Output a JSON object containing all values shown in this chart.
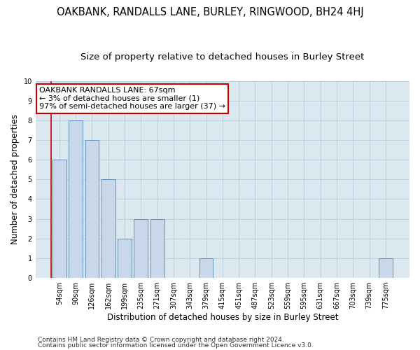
{
  "title": "OAKBANK, RANDALLS LANE, BURLEY, RINGWOOD, BH24 4HJ",
  "subtitle": "Size of property relative to detached houses in Burley Street",
  "xlabel": "Distribution of detached houses by size in Burley Street",
  "ylabel": "Number of detached properties",
  "categories": [
    "54sqm",
    "90sqm",
    "126sqm",
    "162sqm",
    "199sqm",
    "235sqm",
    "271sqm",
    "307sqm",
    "343sqm",
    "379sqm",
    "415sqm",
    "451sqm",
    "487sqm",
    "523sqm",
    "559sqm",
    "595sqm",
    "631sqm",
    "667sqm",
    "703sqm",
    "739sqm",
    "775sqm"
  ],
  "values": [
    6,
    8,
    7,
    5,
    2,
    3,
    3,
    0,
    0,
    1,
    0,
    0,
    0,
    0,
    0,
    0,
    0,
    0,
    0,
    0,
    1
  ],
  "bar_color": "#c8d8ea",
  "bar_edge_color": "#6090b8",
  "bar_linewidth": 0.7,
  "ylim": [
    0,
    10
  ],
  "yticks": [
    0,
    1,
    2,
    3,
    4,
    5,
    6,
    7,
    8,
    9,
    10
  ],
  "grid_color": "#b8ccd8",
  "bg_color": "#dce8f0",
  "annotation_text": "OAKBANK RANDALLS LANE: 67sqm\n← 3% of detached houses are smaller (1)\n97% of semi-detached houses are larger (37) →",
  "annotation_box_color": "#ffffff",
  "annotation_box_edge": "#cc0000",
  "marker_color": "#cc0000",
  "footer1": "Contains HM Land Registry data © Crown copyright and database right 2024.",
  "footer2": "Contains public sector information licensed under the Open Government Licence v3.0.",
  "title_fontsize": 10.5,
  "subtitle_fontsize": 9.5,
  "label_fontsize": 8.5,
  "tick_fontsize": 7,
  "annotation_fontsize": 8,
  "footer_fontsize": 6.5
}
